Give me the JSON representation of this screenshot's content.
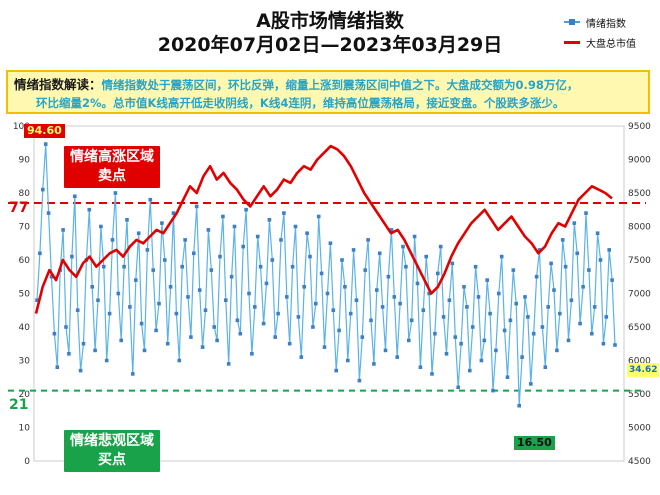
{
  "title_line1": "A股市场情绪指数",
  "title_line2": "2020年07月02日—2023年03月29日",
  "legend": {
    "sentiment": "情绪指数",
    "market_cap": "大盘总市值"
  },
  "note": {
    "heading": "情绪指数解读：",
    "line1": "情绪指数处于震荡区间，环比反弹，缩量上涨到震荡区间中值之下。大盘成交额为0.98万亿，",
    "line2": "环比缩量2%。总市值K线高开低走收阴线，K线4连阴，维持高位震荡格局，接近变盘。个股跌多涨少。"
  },
  "zones": {
    "high_line1": "情绪高涨区域",
    "high_line2": "卖点",
    "low_line1": "情绪悲观区域",
    "low_line2": "买点"
  },
  "labels": {
    "max": "94.60",
    "min": "16.50",
    "latest": "34.62",
    "upper_threshold": "77",
    "lower_threshold": "21"
  },
  "colors": {
    "sentiment": "#3d8fd1",
    "market_cap": "#e00000",
    "upper_line": "#e00000",
    "lower_line": "#1aa24a",
    "badge_max": "#e00000",
    "badge_min": "#1aa24a",
    "badge_latest": "#ffff66"
  },
  "chart_data": {
    "type": "line",
    "y_left": {
      "ticks": [
        0,
        10,
        20,
        30,
        40,
        50,
        60,
        70,
        80,
        90,
        100
      ],
      "range": [
        0,
        100
      ]
    },
    "y_right": {
      "ticks": [
        4500,
        5000,
        5500,
        6000,
        6500,
        7000,
        7500,
        8000,
        8500,
        9000,
        9500
      ],
      "range": [
        4500,
        9500
      ]
    },
    "thresholds": [
      77,
      21
    ],
    "series": [
      {
        "name": "情绪指数",
        "axis": "left",
        "values": [
          48,
          62,
          81,
          94.6,
          74,
          55,
          38,
          28,
          57,
          69,
          40,
          32,
          61,
          79,
          45,
          27,
          35,
          60,
          75,
          52,
          33,
          48,
          70,
          58,
          30,
          44,
          66,
          80,
          50,
          36,
          58,
          72,
          46,
          26,
          54,
          68,
          41,
          33,
          63,
          78,
          57,
          39,
          47,
          71,
          60,
          35,
          52,
          74,
          44,
          30,
          58,
          66,
          49,
          37,
          62,
          76,
          51,
          34,
          45,
          69,
          57,
          40,
          36,
          61,
          73,
          48,
          29,
          55,
          70,
          42,
          38,
          64,
          75,
          50,
          32,
          46,
          67,
          58,
          41,
          53,
          72,
          60,
          37,
          44,
          66,
          74,
          49,
          35,
          58,
          70,
          43,
          31,
          52,
          68,
          61,
          40,
          47,
          73,
          56,
          34,
          50,
          65,
          45,
          27,
          39,
          60,
          52,
          30,
          44,
          63,
          48,
          24,
          37,
          57,
          66,
          42,
          29,
          51,
          62,
          46,
          33,
          55,
          69,
          49,
          31,
          47,
          64,
          58,
          36,
          42,
          67,
          53,
          28,
          45,
          61,
          50,
          26,
          38,
          56,
          64,
          43,
          32,
          48,
          59,
          37,
          22,
          35,
          52,
          46,
          27,
          40,
          58,
          49,
          30,
          36,
          54,
          44,
          21,
          33,
          50,
          61,
          39,
          25,
          42,
          57,
          47,
          16.5,
          31,
          49,
          43,
          23,
          38,
          55,
          63,
          40,
          28,
          46,
          59,
          51,
          33,
          44,
          66,
          58,
          36,
          48,
          71,
          62,
          41,
          52,
          74,
          57,
          38,
          46,
          68,
          60,
          35,
          43,
          63,
          54,
          34.62
        ]
      },
      {
        "name": "大盘总市值",
        "axis": "right",
        "values": [
          6700,
          7100,
          7350,
          7200,
          7500,
          7350,
          7250,
          7450,
          7550,
          7400,
          7500,
          7600,
          7650,
          7550,
          7700,
          7800,
          7750,
          7850,
          7950,
          7900,
          8050,
          8200,
          8400,
          8600,
          8500,
          8750,
          8900,
          8700,
          8800,
          8650,
          8550,
          8400,
          8300,
          8450,
          8600,
          8450,
          8550,
          8700,
          8650,
          8800,
          8900,
          8850,
          9000,
          9100,
          9200,
          9150,
          9050,
          8900,
          8700,
          8500,
          8350,
          8200,
          8050,
          7900,
          7950,
          7800,
          7600,
          7400,
          7200,
          7000,
          7100,
          7300,
          7550,
          7750,
          7900,
          8050,
          8150,
          8250,
          8100,
          7950,
          8050,
          8150,
          8000,
          7850,
          7750,
          7600,
          7700,
          7900,
          8050,
          8000,
          8200,
          8400,
          8500,
          8600,
          8550,
          8500,
          8420
        ]
      }
    ]
  }
}
